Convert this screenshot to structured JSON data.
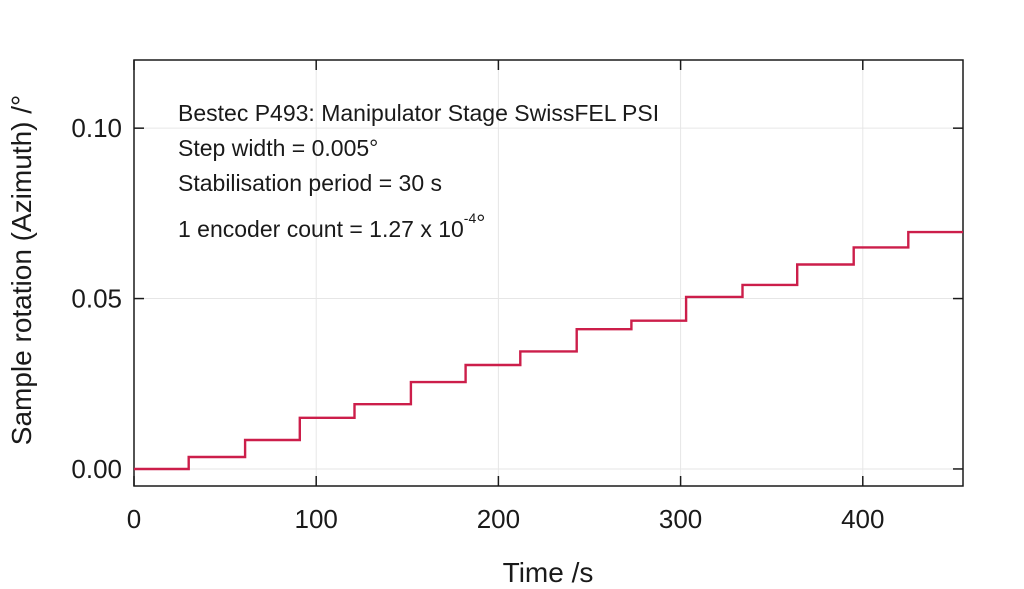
{
  "chart_data": {
    "type": "line",
    "xlabel": "Time /s",
    "ylabel": "Sample rotation (Azimuth) /°",
    "xlim": [
      0,
      455
    ],
    "ylim": [
      -0.005,
      0.12
    ],
    "xticks": [
      0,
      100,
      200,
      300,
      400
    ],
    "xtick_labels": [
      "0",
      "100",
      "200",
      "300",
      "400"
    ],
    "yticks": [
      0.0,
      0.05,
      0.1
    ],
    "ytick_labels": [
      "0.00",
      "0.05",
      "0.10"
    ],
    "grid": true,
    "line_color": "#cc1e4a",
    "annotations": {
      "line1": "Bestec P493: Manipulator Stage SwissFEL PSI",
      "line2": "Step width = 0.005°",
      "line3": "Stabilisation period = 30 s",
      "line4_main": "1 encoder count = 1.27 x 10",
      "line4_sup": "-4",
      "line4_end": "°"
    },
    "series": [
      {
        "x": [
          0,
          30,
          30,
          61,
          61,
          91,
          91,
          121,
          121,
          152,
          152,
          182,
          182,
          212,
          212,
          243,
          243,
          273,
          273,
          303,
          303,
          334,
          334,
          364,
          364,
          395,
          395,
          425,
          425,
          455
        ],
        "values": [
          0.0,
          0.0,
          0.0035,
          0.0035,
          0.0085,
          0.0085,
          0.015,
          0.015,
          0.019,
          0.019,
          0.0255,
          0.0255,
          0.0305,
          0.0305,
          0.0345,
          0.0345,
          0.041,
          0.041,
          0.0435,
          0.0435,
          0.0505,
          0.0505,
          0.054,
          0.054,
          0.06,
          0.06,
          0.065,
          0.065,
          0.0695,
          0.0695
        ]
      }
    ]
  }
}
